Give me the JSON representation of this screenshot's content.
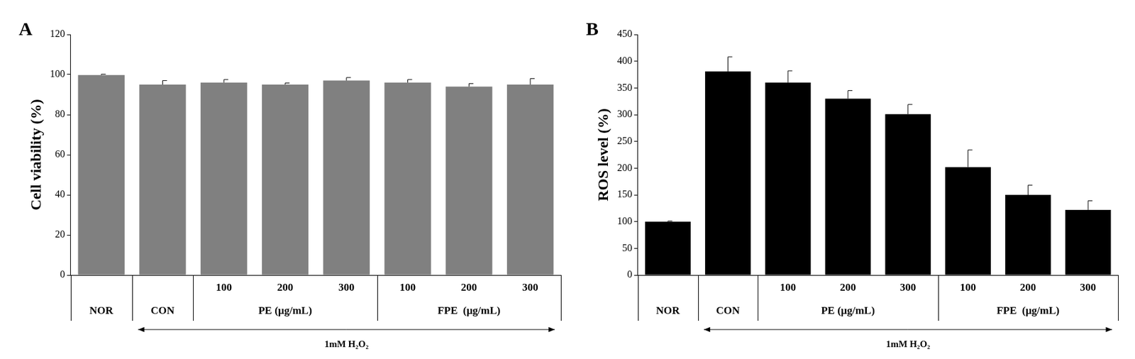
{
  "chart_data": [
    {
      "panel": "A",
      "type": "bar",
      "categories": [
        "NOR",
        "CON",
        "100",
        "200",
        "300",
        "100",
        "200",
        "300"
      ],
      "groups": [
        {
          "label": "PE (μg/mL)",
          "start": 2,
          "end": 4
        },
        {
          "label": "FPE  (μg/mL)",
          "start": 5,
          "end": 7
        }
      ],
      "annotation": {
        "text": "1mM H₂O₂",
        "start": 1,
        "end": 7
      },
      "y_label": "Cell viability (%)",
      "values": [
        99.8,
        95,
        96,
        95,
        97,
        96,
        94,
        95
      ],
      "errors": [
        0.4,
        2,
        1.5,
        0.8,
        1.5,
        1.5,
        1.5,
        3
      ],
      "color": "#808080",
      "ylim": [
        0,
        120
      ],
      "yticks": [
        0,
        20,
        40,
        60,
        80,
        100,
        120
      ],
      "grid": false
    },
    {
      "panel": "B",
      "type": "bar",
      "categories": [
        "NOR",
        "CON",
        "100",
        "200",
        "300",
        "100",
        "200",
        "300"
      ],
      "groups": [
        {
          "label": "PE (μg/mL)",
          "start": 2,
          "end": 4
        },
        {
          "label": "FPE  (μg/mL)",
          "start": 5,
          "end": 7
        }
      ],
      "annotation": {
        "text": "1mM H₂O₂",
        "start": 1,
        "end": 7
      },
      "y_label": "ROS level (%)",
      "values": [
        100,
        381,
        360,
        330,
        301,
        202,
        150,
        122
      ],
      "errors": [
        1,
        27,
        22,
        15,
        18,
        32,
        18,
        17
      ],
      "color": "#000000",
      "ylim": [
        0,
        450
      ],
      "yticks": [
        0,
        50,
        100,
        150,
        200,
        250,
        300,
        350,
        400,
        450
      ],
      "grid": false
    }
  ]
}
